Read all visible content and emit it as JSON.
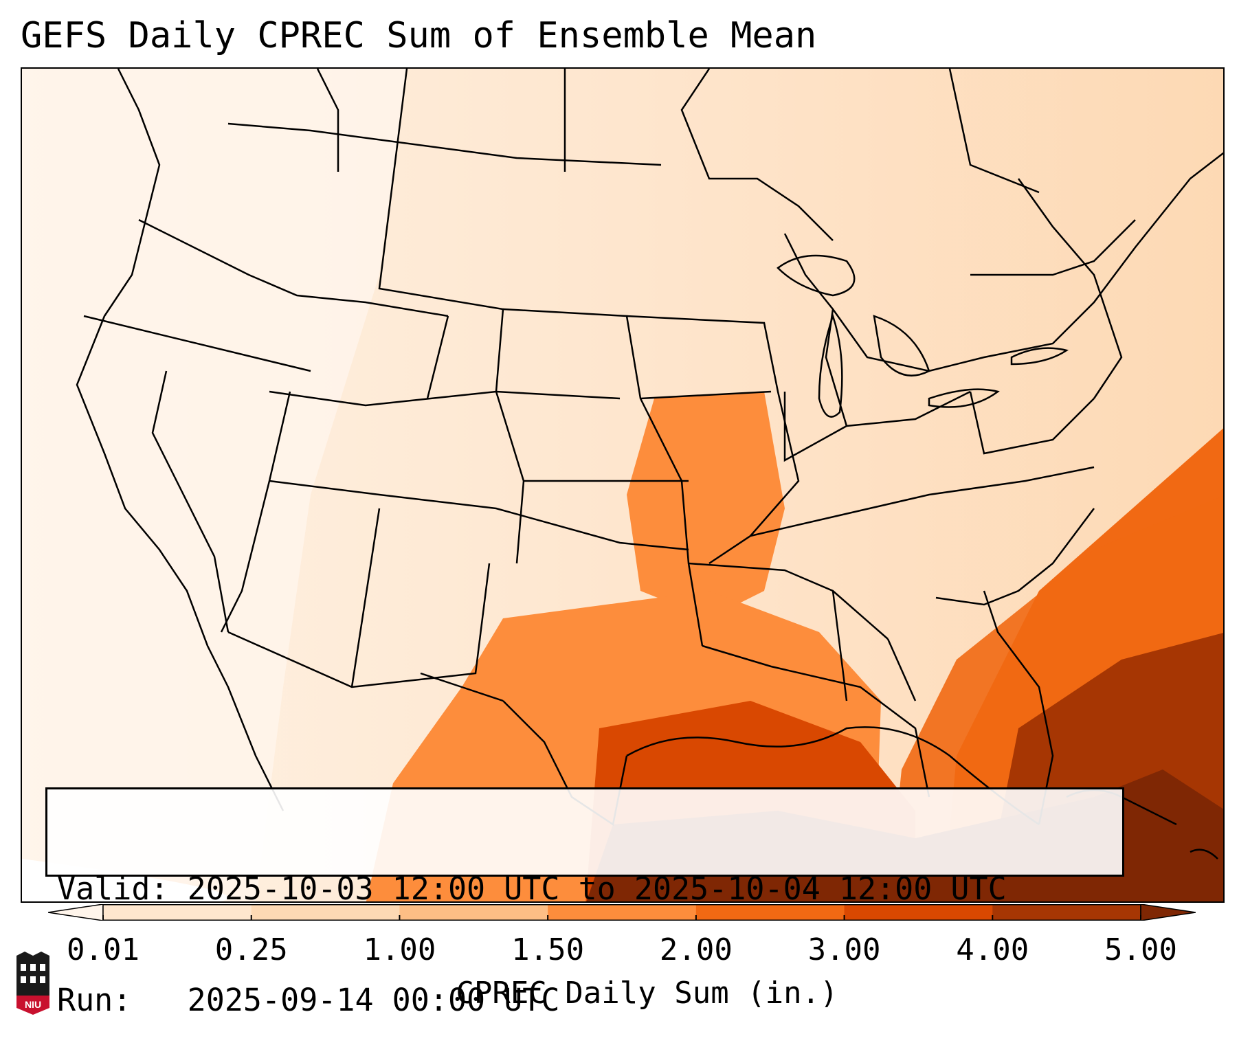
{
  "title": "GEFS Daily CPREC Sum of Ensemble Mean",
  "info": {
    "valid_line": "Valid: 2025-10-03 12:00 UTC to 2025-10-04 12:00 UTC",
    "run_line": "Run:   2025-09-14 00:00 UTC"
  },
  "colorbar": {
    "label": "CPREC Daily Sum (in.)",
    "ticks": [
      "0.01",
      "0.25",
      "1.00",
      "1.50",
      "2.00",
      "3.00",
      "4.00",
      "5.00"
    ],
    "bins": [
      {
        "range": "<0.01",
        "color": "#fff5eb"
      },
      {
        "range": "0.01-0.25",
        "color": "#fee6ce"
      },
      {
        "range": "0.25-1.00",
        "color": "#fdd9b4"
      },
      {
        "range": "1.00-1.50",
        "color": "#fdbe85"
      },
      {
        "range": "1.50-2.00",
        "color": "#fd8d3c"
      },
      {
        "range": "2.00-3.00",
        "color": "#f16913"
      },
      {
        "range": "3.00-4.00",
        "color": "#d94801"
      },
      {
        "range": "4.00-5.00",
        "color": "#a63603"
      },
      {
        "range": ">5.00",
        "color": "#7f2704"
      }
    ]
  },
  "logo": {
    "text": "NIU",
    "icon": "niu-logo-icon"
  }
}
